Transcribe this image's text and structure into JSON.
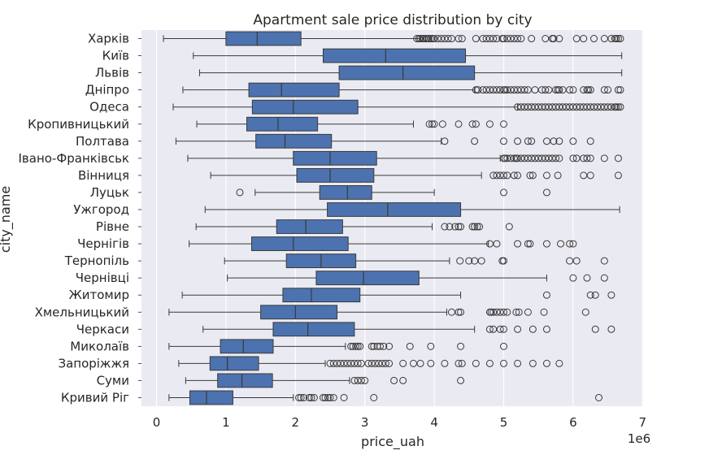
{
  "chart_data": {
    "type": "box",
    "orientation": "horizontal",
    "title": "Apartment sale price distribution by city",
    "xlabel": "price_uah",
    "ylabel": "city_name",
    "x_scale_note": "1e6",
    "xlim": [
      -0.2,
      7.0
    ],
    "x_ticks": [
      "0",
      "1",
      "2",
      "3",
      "4",
      "5",
      "6",
      "7"
    ],
    "grid": true,
    "box_color": "#4c72b0",
    "outlier_color": "#3a3a3a",
    "background_color": "#eaeaf2",
    "categories": [
      {
        "name": "Харків",
        "whisker_low": 0.1,
        "q1": 1.0,
        "median": 1.45,
        "q3": 2.08,
        "whisker_high": 3.8,
        "outliers": [
          3.75,
          3.78,
          3.8,
          3.83,
          3.85,
          3.88,
          3.9,
          3.92,
          3.95,
          3.98,
          4.0,
          4.05,
          4.1,
          4.15,
          4.2,
          4.25,
          4.35,
          4.4,
          4.6,
          4.7,
          4.75,
          4.8,
          4.85,
          4.9,
          4.98,
          5.0,
          5.05,
          5.1,
          5.15,
          5.2,
          5.25,
          5.4,
          5.6,
          5.7,
          5.72,
          5.8,
          6.05,
          6.15,
          6.3,
          6.45,
          6.55,
          6.6,
          6.62,
          6.65,
          6.68
        ]
      },
      {
        "name": "Київ",
        "whisker_low": 0.53,
        "q1": 2.4,
        "median": 3.3,
        "q3": 4.45,
        "whisker_high": 6.7,
        "outliers": []
      },
      {
        "name": "Львів",
        "whisker_low": 0.62,
        "q1": 2.63,
        "median": 3.55,
        "q3": 4.58,
        "whisker_high": 6.7,
        "outliers": []
      },
      {
        "name": "Дніпро",
        "whisker_low": 0.38,
        "q1": 1.33,
        "median": 1.8,
        "q3": 2.63,
        "whisker_high": 4.58,
        "outliers": [
          4.6,
          4.63,
          4.7,
          4.75,
          4.8,
          4.85,
          4.9,
          4.95,
          5.0,
          5.02,
          5.05,
          5.1,
          5.15,
          5.2,
          5.25,
          5.3,
          5.35,
          5.45,
          5.55,
          5.6,
          5.65,
          5.75,
          5.78,
          5.8,
          5.85,
          5.95,
          6.0,
          6.15,
          6.2,
          6.22,
          6.25,
          6.45,
          6.5,
          6.65,
          6.68
        ]
      },
      {
        "name": "Одеса",
        "whisker_low": 0.24,
        "q1": 1.38,
        "median": 1.97,
        "q3": 2.9,
        "whisker_high": 5.2,
        "outliers": [
          5.2,
          5.25,
          5.3,
          5.35,
          5.4,
          5.45,
          5.5,
          5.55,
          5.6,
          5.65,
          5.7,
          5.75,
          5.8,
          5.85,
          5.9,
          5.95,
          6.0,
          6.05,
          6.1,
          6.15,
          6.2,
          6.25,
          6.3,
          6.35,
          6.4,
          6.45,
          6.5,
          6.55,
          6.6,
          6.62,
          6.65,
          6.68
        ]
      },
      {
        "name": "Кропивницький",
        "whisker_low": 0.58,
        "q1": 1.3,
        "median": 1.75,
        "q3": 2.32,
        "whisker_high": 3.7,
        "outliers": [
          3.93,
          3.97,
          4.0,
          4.12,
          4.35,
          4.55,
          4.6,
          4.8,
          5.0
        ]
      },
      {
        "name": "Полтава",
        "whisker_low": 0.28,
        "q1": 1.43,
        "median": 1.85,
        "q3": 2.52,
        "whisker_high": 4.1,
        "outliers": [
          4.15,
          4.58,
          5.0,
          5.2,
          5.35,
          5.4,
          5.62,
          5.72,
          5.8,
          6.0,
          6.25
        ]
      },
      {
        "name": "Івано-Франківськ",
        "whisker_low": 0.45,
        "q1": 1.97,
        "median": 2.5,
        "q3": 3.17,
        "whisker_high": 4.95,
        "outliers": [
          5.0,
          5.02,
          5.05,
          5.1,
          5.15,
          5.18,
          5.2,
          5.25,
          5.3,
          5.35,
          5.4,
          5.45,
          5.5,
          5.55,
          5.6,
          5.65,
          5.7,
          5.75,
          5.8,
          6.0,
          6.05,
          6.15,
          6.2,
          6.25,
          6.45,
          6.65
        ]
      },
      {
        "name": "Вінниця",
        "whisker_low": 0.78,
        "q1": 2.02,
        "median": 2.5,
        "q3": 3.13,
        "whisker_high": 4.68,
        "outliers": [
          4.85,
          4.9,
          4.95,
          5.0,
          5.05,
          5.15,
          5.2,
          5.38,
          5.42,
          5.62,
          5.78,
          6.15,
          6.25,
          6.65
        ]
      },
      {
        "name": "Луцьк",
        "whisker_low": 1.42,
        "q1": 2.35,
        "median": 2.75,
        "q3": 3.1,
        "whisker_high": 4.0,
        "outliers": [
          1.2,
          5.0,
          5.62
        ]
      },
      {
        "name": "Ужгород",
        "whisker_low": 0.7,
        "q1": 2.46,
        "median": 3.33,
        "q3": 4.38,
        "whisker_high": 6.67,
        "outliers": []
      },
      {
        "name": "Рівне",
        "whisker_low": 0.57,
        "q1": 1.73,
        "median": 2.15,
        "q3": 2.68,
        "whisker_high": 3.97,
        "outliers": [
          4.15,
          4.22,
          4.3,
          4.35,
          4.38,
          4.55,
          4.58,
          4.62,
          4.65,
          5.08
        ]
      },
      {
        "name": "Чернігів",
        "whisker_low": 0.47,
        "q1": 1.37,
        "median": 1.97,
        "q3": 2.76,
        "whisker_high": 4.78,
        "outliers": [
          4.8,
          4.9,
          5.2,
          5.35,
          5.38,
          5.62,
          5.82,
          5.95,
          6.0
        ]
      },
      {
        "name": "Тернопіль",
        "whisker_low": 0.98,
        "q1": 1.87,
        "median": 2.37,
        "q3": 2.87,
        "whisker_high": 4.22,
        "outliers": [
          4.37,
          4.5,
          4.58,
          4.68,
          4.98,
          5.0,
          5.95,
          6.05,
          6.45
        ]
      },
      {
        "name": "Чернівці",
        "whisker_low": 1.02,
        "q1": 2.3,
        "median": 2.98,
        "q3": 3.78,
        "whisker_high": 5.62,
        "outliers": [
          6.0,
          6.2,
          6.45
        ]
      },
      {
        "name": "Житомир",
        "whisker_low": 0.37,
        "q1": 1.82,
        "median": 2.23,
        "q3": 2.93,
        "whisker_high": 4.38,
        "outliers": [
          5.62,
          6.25,
          6.32,
          6.55
        ]
      },
      {
        "name": "Хмельницький",
        "whisker_low": 0.18,
        "q1": 1.5,
        "median": 2.0,
        "q3": 2.6,
        "whisker_high": 4.18,
        "outliers": [
          4.25,
          4.35,
          4.38,
          4.8,
          4.82,
          4.85,
          4.9,
          4.95,
          5.0,
          5.05,
          5.18,
          5.22,
          5.35,
          5.58,
          6.18
        ]
      },
      {
        "name": "Черкаси",
        "whisker_low": 0.67,
        "q1": 1.68,
        "median": 2.18,
        "q3": 2.85,
        "whisker_high": 4.58,
        "outliers": [
          4.8,
          4.85,
          4.95,
          5.0,
          5.2,
          5.42,
          5.62,
          6.32,
          6.55
        ]
      },
      {
        "name": "Миколаїв",
        "whisker_low": 0.18,
        "q1": 0.92,
        "median": 1.25,
        "q3": 1.68,
        "whisker_high": 2.72,
        "outliers": [
          2.8,
          2.83,
          2.87,
          2.9,
          2.93,
          3.1,
          3.13,
          3.18,
          3.22,
          3.27,
          3.35,
          3.65,
          3.95,
          4.38,
          5.0
        ]
      },
      {
        "name": "Запоріжжя",
        "whisker_low": 0.32,
        "q1": 0.77,
        "median": 1.02,
        "q3": 1.47,
        "whisker_high": 2.43,
        "outliers": [
          2.5,
          2.55,
          2.6,
          2.65,
          2.7,
          2.75,
          2.8,
          2.85,
          2.9,
          2.95,
          3.05,
          3.1,
          3.15,
          3.2,
          3.25,
          3.3,
          3.35,
          3.55,
          3.7,
          3.8,
          3.95,
          4.15,
          4.35,
          4.4,
          4.6,
          4.8,
          5.0,
          5.2,
          5.42,
          5.62,
          5.8
        ]
      },
      {
        "name": "Суми",
        "whisker_low": 0.42,
        "q1": 0.88,
        "median": 1.23,
        "q3": 1.67,
        "whisker_high": 2.78,
        "outliers": [
          2.85,
          2.9,
          2.95,
          3.0,
          3.42,
          3.55,
          4.38
        ]
      },
      {
        "name": "Кривий Ріг",
        "whisker_low": 0.18,
        "q1": 0.48,
        "median": 0.72,
        "q3": 1.1,
        "whisker_high": 1.97,
        "outliers": [
          2.05,
          2.08,
          2.12,
          2.2,
          2.23,
          2.27,
          2.4,
          2.43,
          2.47,
          2.5,
          2.55,
          2.7,
          3.13,
          6.37
        ]
      }
    ]
  }
}
